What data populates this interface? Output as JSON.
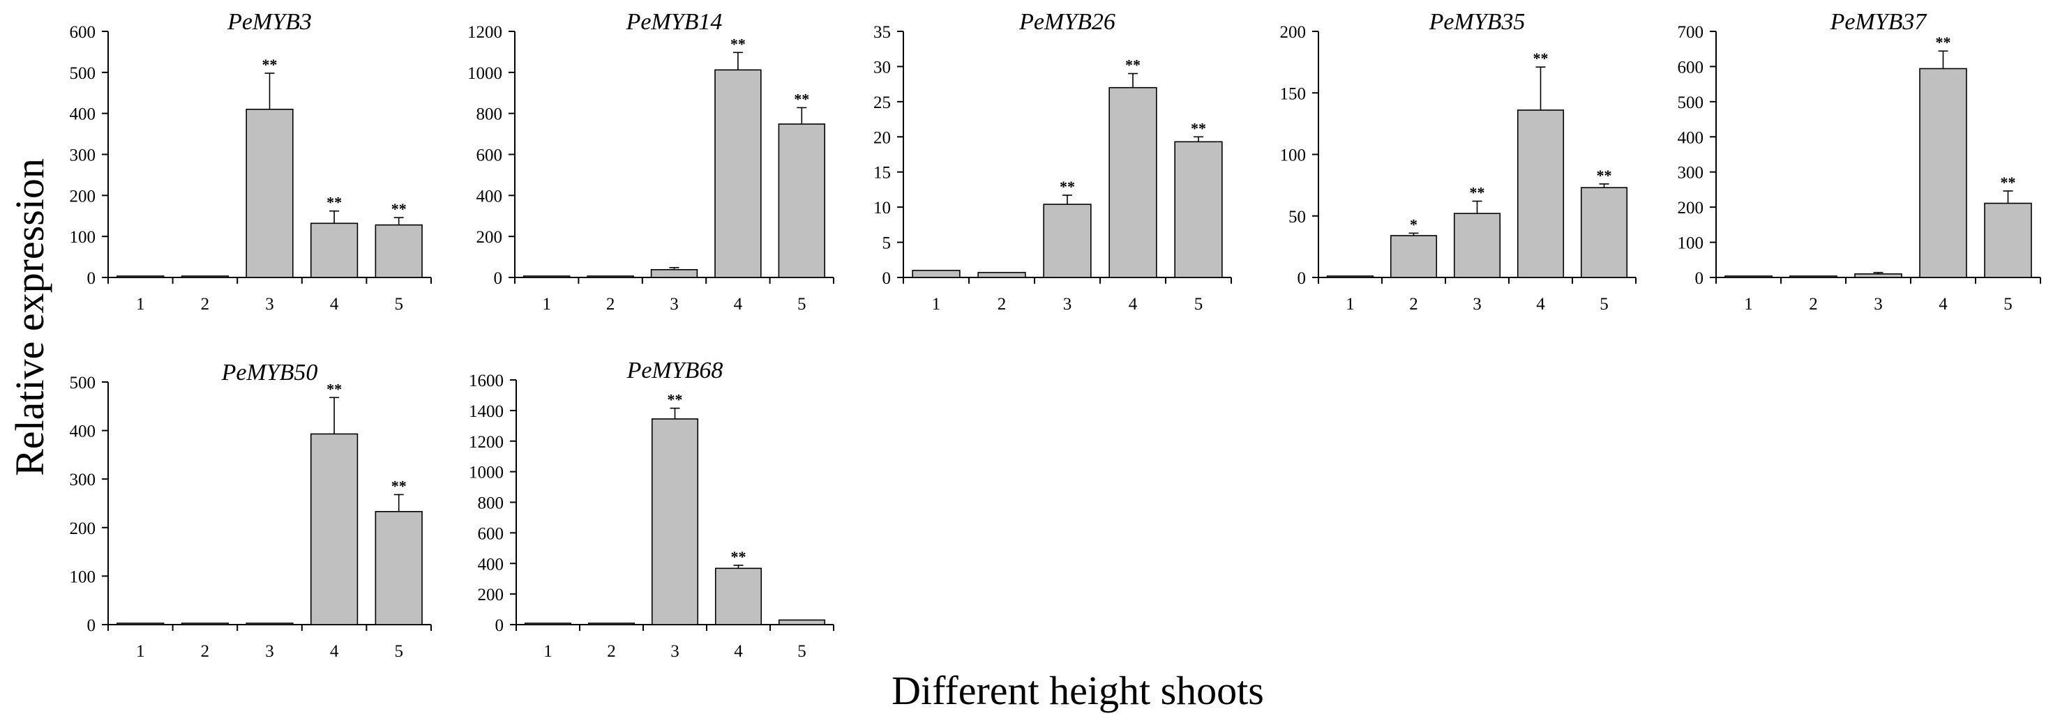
{
  "figure": {
    "ylabel": "Relative expression",
    "xlabel": "Different height shoots"
  },
  "chart_data": [
    {
      "type": "bar",
      "title": "PeMYB3",
      "categories": [
        "1",
        "2",
        "3",
        "4",
        "5"
      ],
      "values": [
        1,
        1,
        410,
        132,
        128
      ],
      "errors": [
        1,
        1,
        88,
        30,
        18
      ],
      "significance": [
        "",
        "",
        "**",
        "**",
        "**"
      ],
      "ylim": [
        0,
        600
      ],
      "yticks": [
        0,
        100,
        200,
        300,
        400,
        500,
        600
      ],
      "xlabel": "",
      "ylabel": ""
    },
    {
      "type": "bar",
      "title": "PeMYB14",
      "categories": [
        "1",
        "2",
        "3",
        "4",
        "5"
      ],
      "values": [
        1,
        1,
        38,
        1012,
        748
      ],
      "errors": [
        1,
        1,
        10,
        85,
        80
      ],
      "significance": [
        "",
        "",
        "",
        "**",
        "**"
      ],
      "ylim": [
        0,
        1200
      ],
      "yticks": [
        0,
        200,
        400,
        600,
        800,
        1000,
        1200
      ],
      "xlabel": "",
      "ylabel": ""
    },
    {
      "type": "bar",
      "title": "PeMYB26",
      "categories": [
        "1",
        "2",
        "3",
        "4",
        "5"
      ],
      "values": [
        1.0,
        0.7,
        10.4,
        27.0,
        19.3
      ],
      "errors": [
        0.1,
        0.1,
        1.3,
        2.0,
        0.7
      ],
      "significance": [
        "",
        "",
        "**",
        "**",
        "**"
      ],
      "ylim": [
        0,
        35
      ],
      "yticks": [
        0,
        5,
        10,
        15,
        20,
        25,
        30,
        35
      ],
      "xlabel": "",
      "ylabel": ""
    },
    {
      "type": "bar",
      "title": "PeMYB35",
      "categories": [
        "1",
        "2",
        "3",
        "4",
        "5"
      ],
      "values": [
        1,
        34,
        52,
        136,
        73
      ],
      "errors": [
        0.5,
        2,
        10,
        35,
        3
      ],
      "significance": [
        "",
        "*",
        "**",
        "**",
        "**"
      ],
      "ylim": [
        0,
        200
      ],
      "yticks": [
        0,
        50,
        100,
        150,
        200
      ],
      "xlabel": "",
      "ylabel": ""
    },
    {
      "type": "bar",
      "title": "PeMYB37",
      "categories": [
        "1",
        "2",
        "3",
        "4",
        "5"
      ],
      "values": [
        1,
        1,
        10,
        594,
        211
      ],
      "errors": [
        1,
        1,
        4,
        50,
        35
      ],
      "significance": [
        "",
        "",
        "",
        "**",
        "**"
      ],
      "ylim": [
        0,
        700
      ],
      "yticks": [
        0,
        100,
        200,
        300,
        400,
        500,
        600,
        700
      ],
      "xlabel": "",
      "ylabel": ""
    },
    {
      "type": "bar",
      "title": "PeMYB50",
      "categories": [
        "1",
        "2",
        "3",
        "4",
        "5"
      ],
      "values": [
        1,
        1,
        1,
        393,
        233
      ],
      "errors": [
        0.5,
        0.5,
        0.5,
        75,
        35
      ],
      "significance": [
        "",
        "",
        "",
        "**",
        "**"
      ],
      "ylim": [
        0,
        500
      ],
      "yticks": [
        0,
        100,
        200,
        300,
        400,
        500
      ],
      "xlabel": "",
      "ylabel": ""
    },
    {
      "type": "bar",
      "title": "PeMYB68",
      "categories": [
        "1",
        "2",
        "3",
        "4",
        "5"
      ],
      "values": [
        2,
        1,
        1345,
        368,
        30
      ],
      "errors": [
        1,
        1,
        70,
        20,
        5
      ],
      "significance": [
        "",
        "",
        "**",
        "**",
        ""
      ],
      "ylim": [
        0,
        1600
      ],
      "yticks": [
        0,
        200,
        400,
        600,
        800,
        1000,
        1200,
        1400,
        1600
      ],
      "xlabel": "",
      "ylabel": ""
    }
  ]
}
